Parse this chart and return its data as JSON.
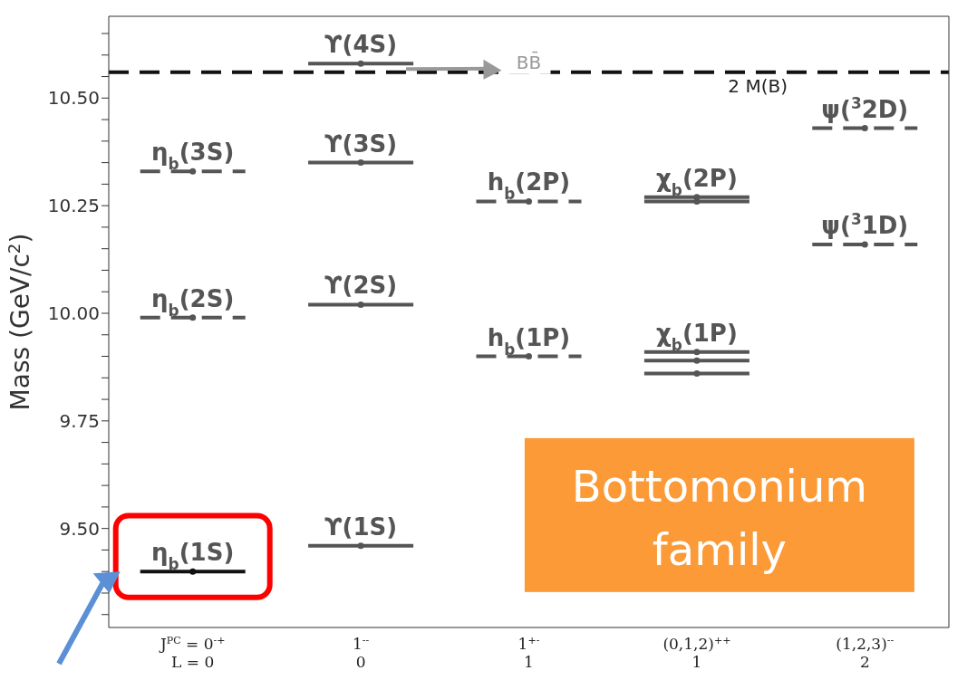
{
  "chart_data": {
    "type": "scatter",
    "ylabel": "Mass (GeV/c$^{2}$)",
    "categories": [
      "J$^{PC}$ = 0$^{-+}$\nL = 0",
      "1$^{--}$\n0",
      "1$^{+-}$\n1",
      "(0,1,2)$^{++}$\n1",
      "(1,2,3)$^{--}$\n2"
    ],
    "ylim": [
      9.27,
      10.69
    ],
    "marker": "circle",
    "yticks": [
      {
        "value": 9.3,
        "label": null
      },
      {
        "value": 9.35,
        "label": null
      },
      {
        "value": 9.4,
        "label": null
      },
      {
        "value": 9.45,
        "label": null
      },
      {
        "value": 9.5,
        "label": "9.50"
      },
      {
        "value": 9.55,
        "label": null
      },
      {
        "value": 9.6,
        "label": null
      },
      {
        "value": 9.65,
        "label": null
      },
      {
        "value": 9.7,
        "label": null
      },
      {
        "value": 9.75,
        "label": "9.75"
      },
      {
        "value": 9.8,
        "label": null
      },
      {
        "value": 9.85,
        "label": null
      },
      {
        "value": 9.9,
        "label": null
      },
      {
        "value": 9.95,
        "label": null
      },
      {
        "value": 10,
        "label": "10.00"
      },
      {
        "value": 10.05,
        "label": null
      },
      {
        "value": 10.1,
        "label": null
      },
      {
        "value": 10.15,
        "label": null
      },
      {
        "value": 10.2,
        "label": null
      },
      {
        "value": 10.25,
        "label": "10.25"
      },
      {
        "value": 10.3,
        "label": null
      },
      {
        "value": 10.35,
        "label": null
      },
      {
        "value": 10.4,
        "label": null
      },
      {
        "value": 10.45,
        "label": null
      },
      {
        "value": 10.5,
        "label": "10.50"
      },
      {
        "value": 10.55,
        "label": null
      },
      {
        "value": 10.6,
        "label": null
      },
      {
        "value": 10.65,
        "label": null
      }
    ],
    "series": [
      {
        "line_style": "solid",
        "color": "#555555",
        "x": [
          "J$^{PC}$ = 0$^{-+}$\nL = 0",
          "1$^{--}$\n0",
          "1$^{--}$\n0",
          "1$^{--}$\n0",
          "1$^{--}$\n0",
          "(0,1,2)$^{++}$\n1",
          "(0,1,2)$^{++}$\n1",
          "(0,1,2)$^{++}$\n1",
          "(0,1,2)$^{++}$\n1",
          "(0,1,2)$^{++}$\n1"
        ],
        "values": [
          9.4,
          9.46,
          10.02,
          10.35,
          10.58,
          9.86,
          9.89,
          9.91,
          10.26,
          10.27
        ],
        "colors": [
          "#111111",
          "#555555",
          "#555555",
          "#555555",
          "#555555",
          "#555555",
          "#555555",
          "#555555",
          "#555555",
          "#555555"
        ]
      },
      {
        "line_style": "dashed",
        "color": "#555555",
        "x": [
          "J$^{PC}$ = 0$^{-+}$\nL = 0",
          "J$^{PC}$ = 0$^{-+}$\nL = 0",
          "1$^{+-}$\n1",
          "1$^{+-}$\n1",
          "(1,2,3)$^{--}$\n2",
          "(1,2,3)$^{--}$\n2"
        ],
        "values": [
          9.99,
          10.33,
          9.9,
          10.26,
          10.16,
          10.43
        ]
      }
    ],
    "ref_lines": [
      {
        "axis": "y",
        "value": 10.56,
        "label": "2 M(B)",
        "color": "#111111",
        "line_style": "dashed"
      }
    ],
    "annotations": [
      {
        "text": "η$_{b}$(1S)",
        "x": "J$^{PC}$ = 0$^{-+}$\nL = 0",
        "y": 9.4
      },
      {
        "text": "η$_{b}$(2S)",
        "x": "J$^{PC}$ = 0$^{-+}$\nL = 0",
        "y": 9.99
      },
      {
        "text": "η$_{b}$(3S)",
        "x": "J$^{PC}$ = 0$^{-+}$\nL = 0",
        "y": 10.33
      },
      {
        "text": "ϒ(1S)",
        "x": "1$^{--}$\n0",
        "y": 9.46
      },
      {
        "text": "ϒ(2S)",
        "x": "1$^{--}$\n0",
        "y": 10.02
      },
      {
        "text": "ϒ(3S)",
        "x": "1$^{--}$\n0",
        "y": 10.35
      },
      {
        "text": "ϒ(4S)",
        "x": "1$^{--}$\n0",
        "y": 10.58
      },
      {
        "text": "h$_{b}$(1P)",
        "x": "1$^{+-}$\n1",
        "y": 9.9
      },
      {
        "text": "h$_{b}$(2P)",
        "x": "1$^{+-}$\n1",
        "y": 10.26
      },
      {
        "text": "χ$_{b}$(1P)",
        "x": "(0,1,2)$^{++}$\n1",
        "y": 9.91
      },
      {
        "text": "χ$_{b}$(2P)",
        "x": "(0,1,2)$^{++}$\n1",
        "y": 10.27
      },
      {
        "text": "ψ($^{3}$1D)",
        "x": "(1,2,3)$^{--}$\n2",
        "y": 10.16
      },
      {
        "text": "ψ($^{3}$2D)",
        "x": "(1,2,3)$^{--}$\n2",
        "y": 10.43
      },
      "BB̄",
      "Bottomonium family"
    ]
  }
}
